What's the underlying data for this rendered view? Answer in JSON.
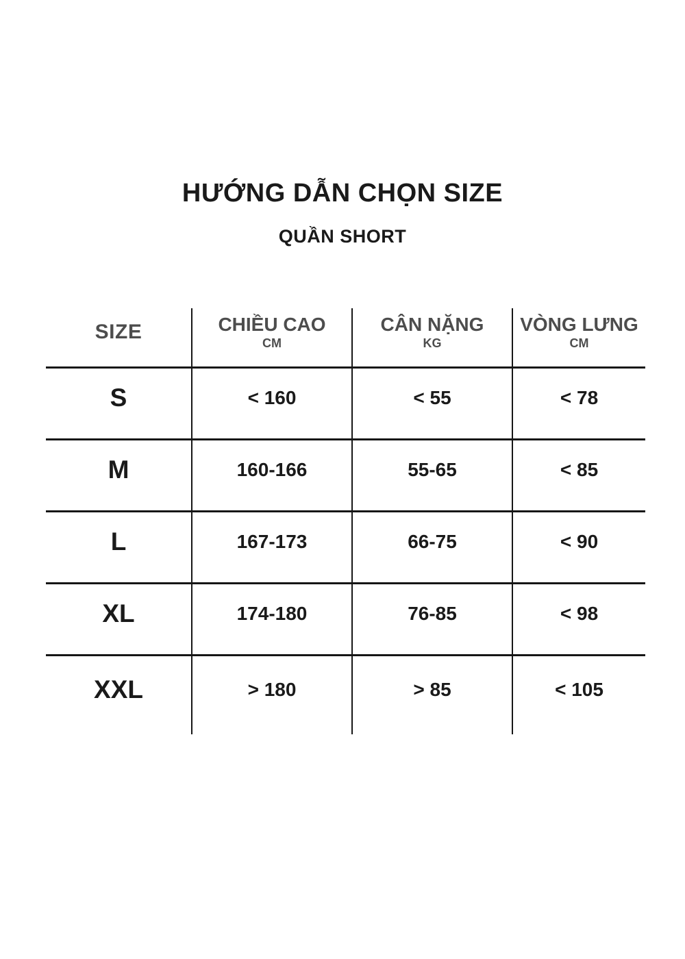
{
  "page": {
    "title": "HƯỚNG DẪN CHỌN SIZE",
    "subtitle": "QUẦN SHORT"
  },
  "table": {
    "size_header": "SIZE",
    "columns": [
      {
        "label": "CHIỀU CAO",
        "unit": "CM"
      },
      {
        "label": "CÂN NẶNG",
        "unit": "KG"
      },
      {
        "label": "VÒNG LƯNG",
        "unit": "CM"
      }
    ],
    "rows": [
      {
        "size": "S",
        "height": "< 160",
        "weight": "< 55",
        "waist": "< 78"
      },
      {
        "size": "M",
        "height": "160-166",
        "weight": "55-65",
        "waist": "< 85"
      },
      {
        "size": "L",
        "height": "167-173",
        "weight": "66-75",
        "waist": "< 90"
      },
      {
        "size": "XL",
        "height": "174-180",
        "weight": "76-85",
        "waist": "< 98"
      },
      {
        "size": "XXL",
        "height": "> 180",
        "weight": "> 85",
        "waist": "< 105"
      }
    ]
  },
  "colors": {
    "text": "#1a1a1a",
    "header_text": "#4d4d4d",
    "line": "#161616",
    "background": "#ffffff"
  }
}
